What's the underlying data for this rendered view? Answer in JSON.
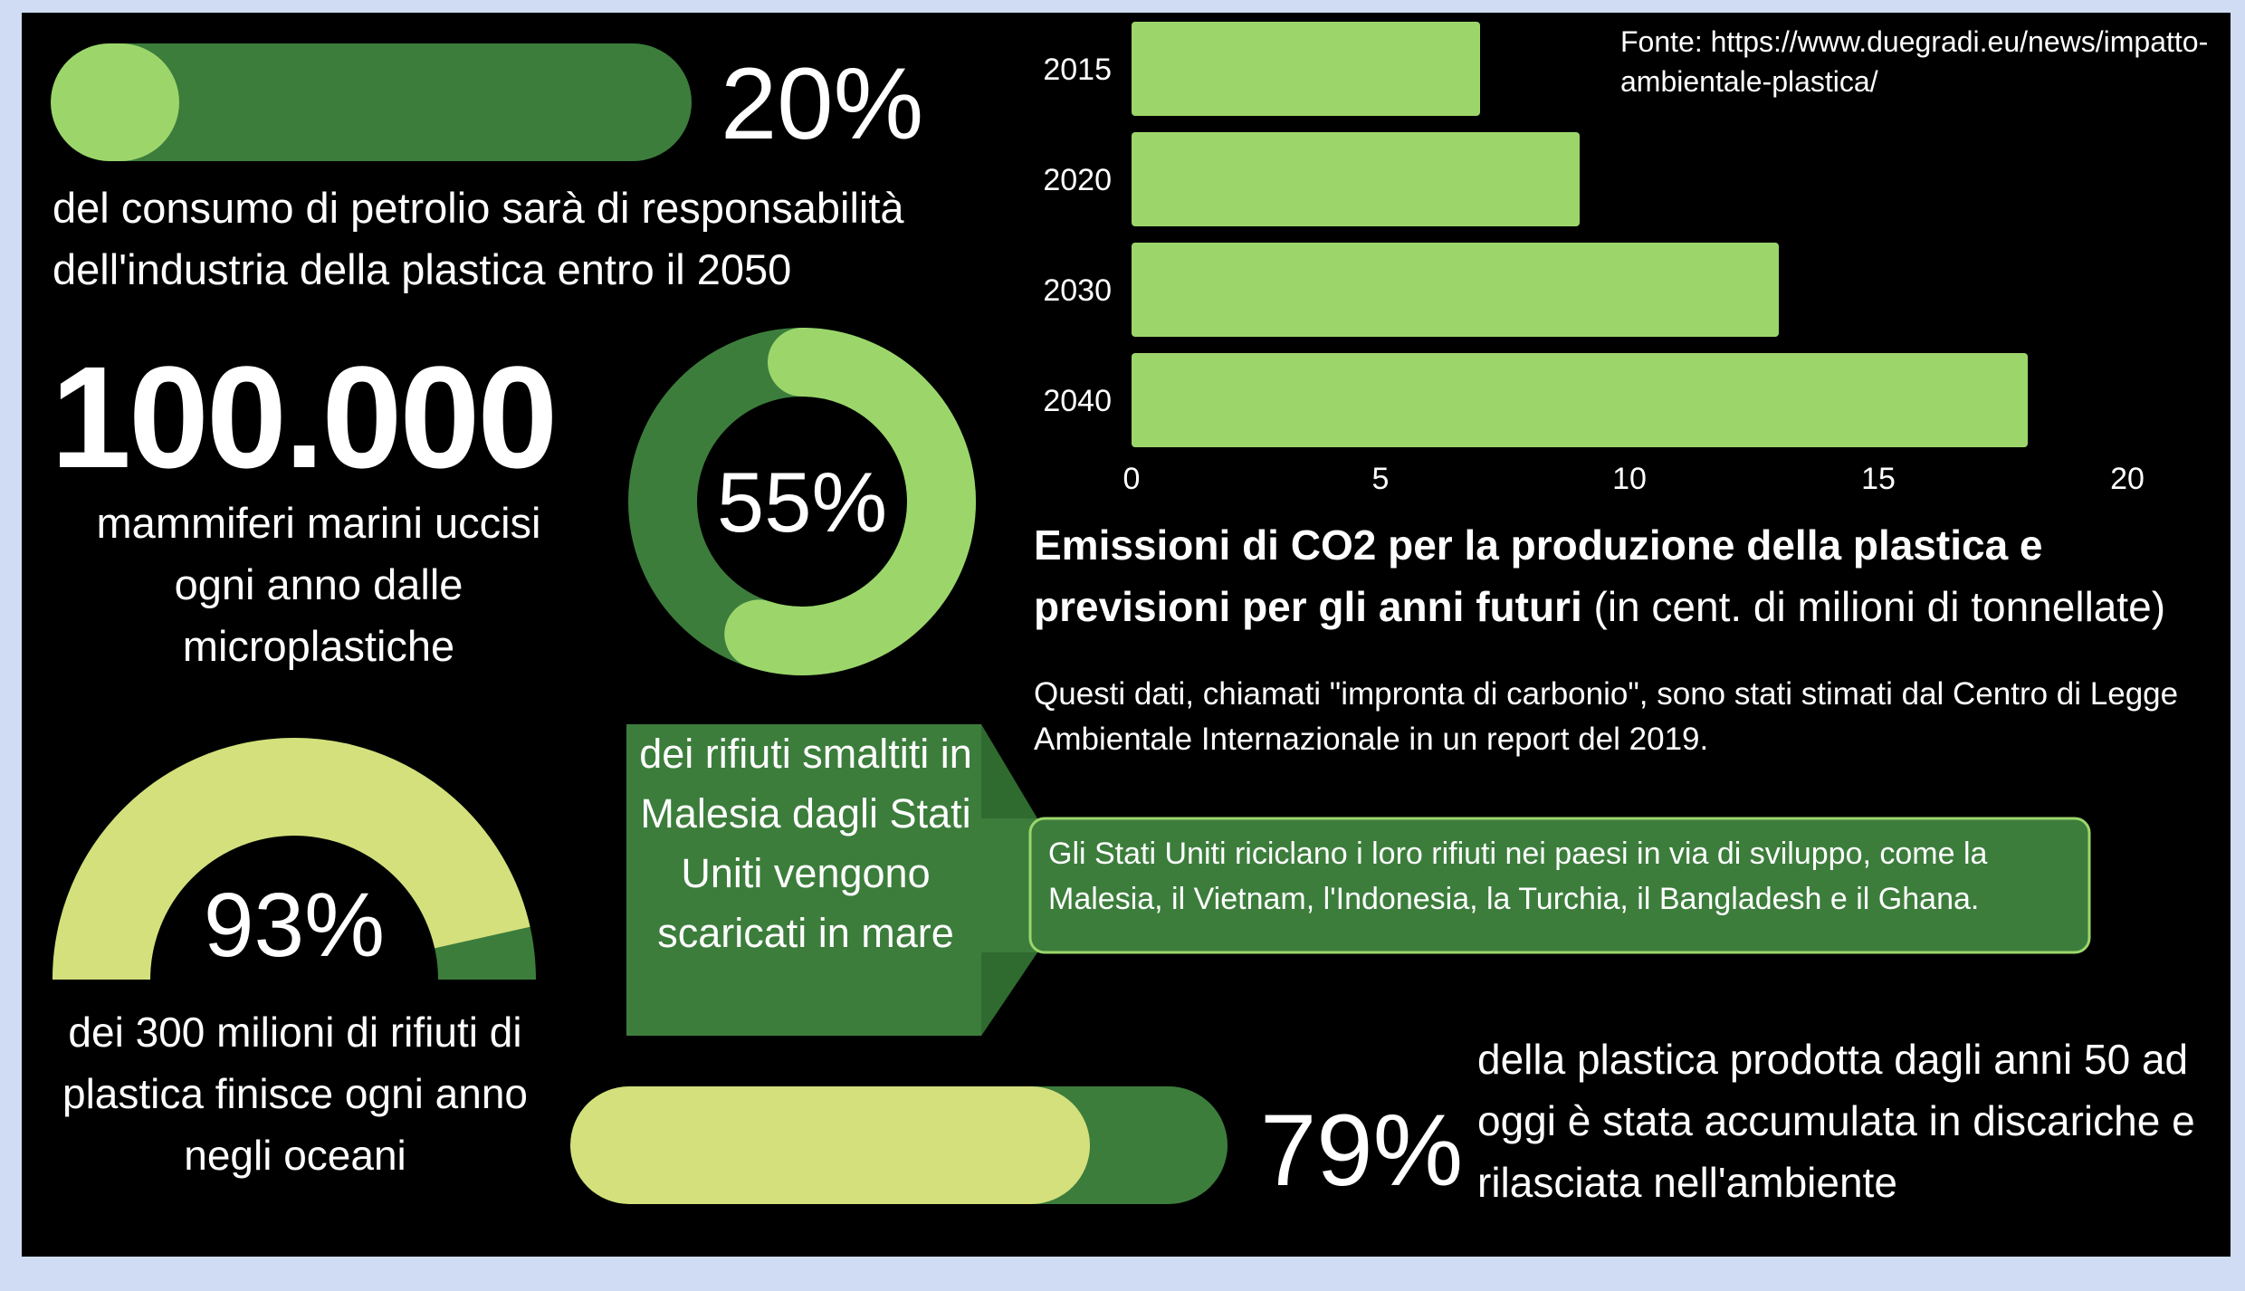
{
  "colors": {
    "background": "#000000",
    "frame": "#cfdcf3",
    "dark_green": "#3c7d3c",
    "light_green": "#9cd66b",
    "lime": "#d4e07c",
    "text": "#ffffff"
  },
  "stat_oil": {
    "value_text": "20%",
    "progress": 0.2,
    "description": "del consumo di petrolio sarà di responsabilità dell'industria della plastica entro il 2050"
  },
  "stat_mammals": {
    "value_text": "100.000",
    "description": "mammiferi marini uccisi ogni anno dalle microplastiche"
  },
  "stat_waste_malaysia": {
    "value_text": "55%",
    "progress": 0.55,
    "description": "dei rifiuti smaltiti in Malesia dagli Stati Uniti vengono scaricati in mare",
    "callout": "Gli Stati Uniti riciclano i loro rifiuti nei paesi in via di sviluppo, come la Malesia, il Vietnam, l'Indonesia, la Turchia, il Bangladesh e il Ghana."
  },
  "stat_oceans": {
    "value_text": "93%",
    "progress": 0.93,
    "description": "dei 300 milioni di rifiuti di plastica finisce ogni anno negli oceani"
  },
  "stat_landfill": {
    "value_text": "79%",
    "progress": 0.79,
    "description": "della plastica prodotta dagli anni 50 ad oggi è stata accumulata in discariche e rilasciata nell'ambiente"
  },
  "source": "Fonte: https://www.duegradi.eu/news/impatto-ambientale-plastica/",
  "chart_data": {
    "type": "bar",
    "orientation": "horizontal",
    "categories": [
      "2015",
      "2020",
      "2030",
      "2040"
    ],
    "values": [
      7,
      9,
      13,
      18
    ],
    "xlim": [
      0,
      20
    ],
    "xticks": [
      "0",
      "5",
      "10",
      "15",
      "20"
    ],
    "title_bold": "Emissioni di CO2 per la produzione della plastica e previsioni per gli anni futuri",
    "title_rest": "(in cent. di milioni di tonnellate)",
    "grid": false,
    "bar_color": "#9cd66b"
  },
  "chart_note": "Questi dati, chiamati \"impronta di carbonio\", sono stati stimati dal Centro di Legge Ambientale Internazionale in un report del 2019."
}
